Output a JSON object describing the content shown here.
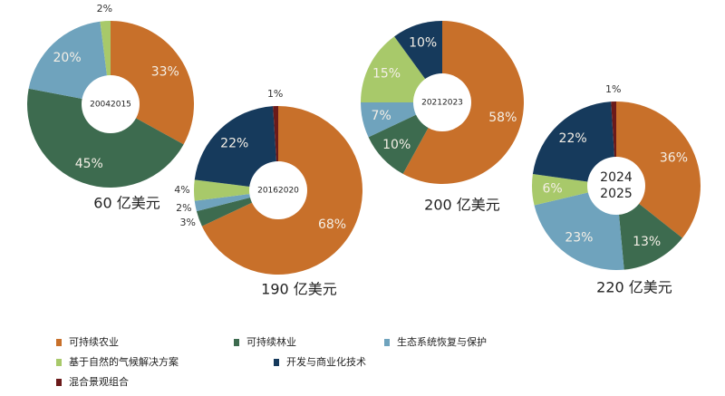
{
  "legend": [
    {
      "name": "可持续农业",
      "color": "#c8702a"
    },
    {
      "name": "可持续林业",
      "color": "#3d6b4f"
    },
    {
      "name": "生态系统恢复与保护",
      "color": "#6fa3bd"
    },
    {
      "name": "基于自然的气候解决方案",
      "color": "#a8c96a"
    },
    {
      "name": "开发与商业化技术",
      "color": "#163a5c"
    },
    {
      "name": "混合景观组合",
      "color": "#6b1a1a"
    }
  ],
  "chart_data": [
    {
      "type": "pie",
      "hole": true,
      "center_label": [
        "20042015"
      ],
      "total": "60 亿美元",
      "values": [
        33,
        45,
        20,
        2,
        null,
        null
      ],
      "value_labels": [
        "33%",
        "45%",
        "20%",
        "2%",
        null,
        null
      ]
    },
    {
      "type": "pie",
      "hole": true,
      "center_label": [
        "20162020"
      ],
      "total": "190 亿美元",
      "values": [
        68,
        3,
        2,
        4,
        22,
        1
      ],
      "value_labels": [
        "68%",
        "3%",
        "2%",
        "4%",
        "22%",
        "1%"
      ]
    },
    {
      "type": "pie",
      "hole": true,
      "center_label": [
        "20212023"
      ],
      "total": "200 亿美元",
      "values": [
        58,
        10,
        7,
        15,
        10,
        null
      ],
      "value_labels": [
        "58%",
        "10%",
        "7%",
        "15%",
        "10%",
        null
      ]
    },
    {
      "type": "pie",
      "hole": true,
      "center_label": [
        "2024",
        "2025"
      ],
      "total": "220 亿美元",
      "values": [
        36,
        13,
        23,
        6,
        22,
        1
      ],
      "value_labels": [
        "36%",
        "13%",
        "23%",
        "6%",
        "22%",
        "1%"
      ]
    }
  ]
}
